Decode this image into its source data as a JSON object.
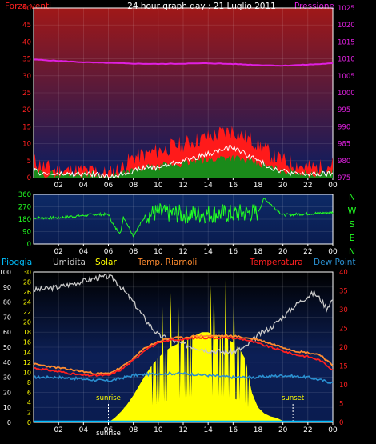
{
  "chart_data": [
    {
      "type": "line",
      "title": "24 hour graph day : 21 Luglio 2011",
      "left_label": "Forza venti",
      "right_label": "Pressione",
      "x_ticks": [
        "02",
        "04",
        "06",
        "08",
        "10",
        "12",
        "14",
        "16",
        "18",
        "20",
        "22",
        "00"
      ],
      "left_axis": {
        "ylim": [
          0,
          50
        ],
        "ticks": [
          0,
          5,
          10,
          15,
          20,
          25,
          30,
          35,
          40,
          45,
          50
        ]
      },
      "right_axis": {
        "ylim": [
          975,
          1025
        ],
        "ticks": [
          975,
          980,
          985,
          990,
          995,
          1000,
          1005,
          1010,
          1015,
          1020,
          1025
        ]
      },
      "series": [
        {
          "name": "Pressione",
          "axis": "right",
          "color": "#e020e0",
          "x": [
            0,
            2,
            4,
            6,
            8,
            10,
            12,
            14,
            16,
            18,
            20,
            22,
            24
          ],
          "values": [
            1009.8,
            1009.4,
            1009.0,
            1008.8,
            1008.6,
            1008.5,
            1008.6,
            1008.7,
            1008.5,
            1008.2,
            1008.0,
            1008.3,
            1008.7
          ]
        },
        {
          "name": "Raffica",
          "axis": "left",
          "color": "#ff1a1a",
          "x": [
            0,
            1,
            2,
            3,
            4,
            5,
            6,
            7,
            8,
            9,
            10,
            11,
            12,
            13,
            14,
            15,
            16,
            17,
            18,
            19,
            20,
            21,
            22,
            23,
            24
          ],
          "values": [
            5,
            3,
            2,
            2,
            2,
            2,
            1,
            3,
            6,
            7,
            8,
            9,
            10,
            11,
            12,
            13,
            14,
            12,
            10,
            7,
            5,
            4,
            3,
            3,
            4
          ]
        },
        {
          "name": "Vento medio",
          "axis": "left",
          "color": "#1a8a1a",
          "x": [
            0,
            1,
            2,
            3,
            4,
            5,
            6,
            7,
            8,
            9,
            10,
            11,
            12,
            13,
            14,
            15,
            16,
            17,
            18,
            19,
            20,
            21,
            22,
            23,
            24
          ],
          "values": [
            2,
            1,
            1,
            1,
            1,
            1,
            0,
            1,
            2,
            3,
            3,
            4,
            4,
            5,
            5,
            6,
            6,
            5,
            4,
            3,
            2,
            2,
            1,
            1,
            2
          ]
        },
        {
          "name": "Vento",
          "axis": "left",
          "color": "#ffffff",
          "x": [
            0,
            1,
            2,
            3,
            4,
            5,
            6,
            7,
            8,
            9,
            10,
            11,
            12,
            13,
            14,
            15,
            16,
            17,
            18,
            19,
            20,
            21,
            22,
            23,
            24
          ],
          "values": [
            2,
            1,
            1,
            1,
            1,
            1,
            0,
            1,
            2,
            3,
            3,
            4,
            5,
            6,
            7,
            8,
            9,
            7,
            5,
            3,
            2,
            1,
            1,
            1,
            1
          ]
        }
      ]
    },
    {
      "type": "line",
      "title": "",
      "x_ticks": [
        "02",
        "04",
        "06",
        "08",
        "10",
        "12",
        "14",
        "16",
        "18",
        "20",
        "22",
        "00"
      ],
      "y_axis": {
        "ylim": [
          0,
          360
        ],
        "ticks": [
          0,
          90,
          180,
          270,
          360
        ]
      },
      "compass_labels": [
        "N",
        "W",
        "S",
        "E",
        "N"
      ],
      "series": [
        {
          "name": "Direzione",
          "color": "#22ff22",
          "x": [
            0,
            2,
            3,
            5,
            6,
            6.5,
            7,
            7.2,
            8,
            9,
            10,
            12,
            14,
            16,
            18,
            18.5,
            20,
            22,
            24
          ],
          "values": [
            190,
            190,
            200,
            215,
            215,
            120,
            80,
            200,
            60,
            210,
            230,
            215,
            220,
            220,
            230,
            330,
            210,
            220,
            230
          ]
        }
      ]
    },
    {
      "type": "area",
      "title": "",
      "legend": [
        "Pioggia",
        "Umidita",
        "Solar",
        "Temp. Riarnoli",
        "Temperatura",
        "Dew Point"
      ],
      "x_ticks": [
        "02",
        "04",
        "06",
        "08",
        "10",
        "12",
        "14",
        "16",
        "18",
        "20",
        "22",
        "00"
      ],
      "sunrise_label": "sunrise",
      "sunset_label": "sunset",
      "sunrise_hour": 6.0,
      "sunset_hour": 20.8,
      "axis_0_100": {
        "ylim": [
          0,
          100
        ],
        "ticks": [
          0,
          10,
          20,
          30,
          40,
          50,
          60,
          70,
          80,
          90,
          100
        ]
      },
      "axis_0_30": {
        "ylim": [
          0,
          30
        ],
        "ticks": [
          0,
          2,
          4,
          6,
          8,
          10,
          12,
          14,
          16,
          18,
          20,
          22,
          24,
          26,
          28,
          30
        ]
      },
      "axis_temp": {
        "ylim": [
          0,
          40
        ],
        "ticks": [
          0,
          5,
          10,
          15,
          20,
          25,
          30,
          35,
          40
        ]
      },
      "colors": {
        "Pioggia": "#00c0ff",
        "Umidita": "#c8c8c8",
        "Solar": "#ffff00",
        "Temp. Riarnoli": "#ff8c30",
        "Temperatura": "#ff2020",
        "Dew Point": "#2a8fd0"
      },
      "series": [
        {
          "name": "Umidita",
          "axis": "axis_0_100",
          "x": [
            0,
            1,
            2,
            3,
            4,
            5,
            6,
            6.5,
            7,
            8,
            9,
            10,
            11,
            12,
            13,
            14,
            15,
            16,
            17,
            18,
            19,
            20,
            21,
            22,
            22.5,
            23,
            23.5,
            24
          ],
          "values": [
            88,
            89,
            90,
            92,
            94,
            96,
            97,
            95,
            90,
            80,
            68,
            58,
            55,
            52,
            50,
            48,
            47,
            47,
            50,
            58,
            63,
            70,
            78,
            84,
            86,
            82,
            76,
            82
          ]
        },
        {
          "name": "Solar",
          "axis": "axis_0_100",
          "x": [
            0,
            5.8,
            6,
            6.5,
            7,
            7.5,
            8,
            8.5,
            9,
            9.5,
            10,
            10.5,
            11,
            11.5,
            12,
            12.5,
            13,
            13.5,
            14,
            14.5,
            15,
            15.5,
            16,
            16.5,
            17,
            17.5,
            18,
            18.5,
            19,
            19.5,
            20,
            20.5,
            21,
            24
          ],
          "values": [
            0,
            0,
            0,
            3,
            7,
            12,
            18,
            25,
            32,
            38,
            43,
            47,
            50,
            52,
            55,
            57,
            58,
            60,
            60,
            58,
            58,
            56,
            53,
            49,
            42,
            20,
            10,
            6,
            4,
            3,
            1,
            1,
            0,
            0
          ]
        },
        {
          "name": "Temp. Riarnoli",
          "axis": "axis_temp",
          "x": [
            0,
            1,
            2,
            3,
            4,
            5,
            6,
            7,
            8,
            9,
            10,
            11,
            12,
            13,
            14,
            15,
            16,
            17,
            18,
            19,
            20,
            21,
            22,
            23,
            24
          ],
          "values": [
            15.5,
            15,
            14.5,
            14,
            13.5,
            13,
            13,
            14.5,
            17,
            20,
            21.5,
            22.5,
            22.5,
            23,
            23,
            23,
            23,
            22.5,
            22,
            21,
            20,
            19,
            18.5,
            18,
            15
          ]
        },
        {
          "name": "Temperatura",
          "axis": "axis_temp",
          "x": [
            0,
            1,
            2,
            3,
            4,
            5,
            6,
            7,
            8,
            9,
            10,
            11,
            12,
            13,
            14,
            15,
            16,
            17,
            18,
            19,
            20,
            21,
            22,
            23,
            24
          ],
          "values": [
            14.5,
            14,
            13.5,
            13,
            12.5,
            12.5,
            12.5,
            14,
            16.5,
            19.5,
            21,
            22,
            22,
            22.5,
            22.5,
            22.5,
            22.5,
            22,
            21,
            20,
            19,
            18,
            17.5,
            16.5,
            14
          ]
        },
        {
          "name": "Dew Point",
          "axis": "axis_temp",
          "x": [
            0,
            2,
            4,
            6,
            8,
            10,
            12,
            14,
            16,
            18,
            20,
            22,
            24
          ],
          "values": [
            12,
            12,
            11.5,
            11,
            12.5,
            13,
            13,
            12.5,
            12,
            12,
            12.5,
            12,
            10.5
          ]
        },
        {
          "name": "Pioggia",
          "axis": "axis_0_30",
          "x": [
            0,
            24
          ],
          "values": [
            0.2,
            0.2
          ]
        }
      ]
    }
  ]
}
